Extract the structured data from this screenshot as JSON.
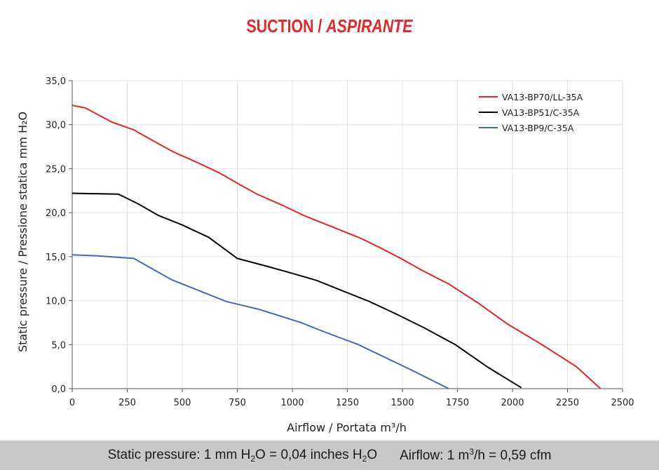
{
  "header": {
    "title_main": "SUCTION /",
    "title_italic": "ASPIRANTE",
    "title_color": "#e3262b"
  },
  "chart_data": {
    "type": "line",
    "xlabel": "Airflow / Portata m³/h",
    "ylabel": "Static pressure / Pressione statica mm H₂O",
    "xlim": [
      0,
      2500
    ],
    "ylim": [
      0,
      35
    ],
    "x_ticks": [
      "0",
      "250",
      "500",
      "750",
      "1000",
      "1250",
      "1500",
      "1750",
      "2000",
      "2250",
      "2500"
    ],
    "y_ticks": [
      "0,0",
      "5,0",
      "10,0",
      "15,0",
      "20,0",
      "25,0",
      "30,0",
      "35,0"
    ],
    "grid": true,
    "legend_position": "top-right",
    "series": [
      {
        "name": "VA13-BP70/LL-35A",
        "color": "#e3262b",
        "points": [
          [
            0,
            32.2
          ],
          [
            60,
            31.9
          ],
          [
            180,
            30.3
          ],
          [
            280,
            29.4
          ],
          [
            380,
            28.0
          ],
          [
            460,
            26.9
          ],
          [
            560,
            25.8
          ],
          [
            670,
            24.5
          ],
          [
            760,
            23.2
          ],
          [
            840,
            22.1
          ],
          [
            950,
            20.9
          ],
          [
            1050,
            19.7
          ],
          [
            1180,
            18.4
          ],
          [
            1310,
            17.1
          ],
          [
            1400,
            16.0
          ],
          [
            1500,
            14.7
          ],
          [
            1600,
            13.3
          ],
          [
            1710,
            11.9
          ],
          [
            1840,
            9.8
          ],
          [
            1980,
            7.3
          ],
          [
            2140,
            4.9
          ],
          [
            2290,
            2.5
          ],
          [
            2400,
            0.0
          ]
        ]
      },
      {
        "name": "VA13-BP51/C-35A",
        "color": "#000000",
        "points": [
          [
            0,
            22.2
          ],
          [
            210,
            22.1
          ],
          [
            300,
            21.0
          ],
          [
            390,
            19.7
          ],
          [
            500,
            18.6
          ],
          [
            620,
            17.2
          ],
          [
            750,
            14.8
          ],
          [
            900,
            13.8
          ],
          [
            1000,
            13.1
          ],
          [
            1110,
            12.3
          ],
          [
            1230,
            11.1
          ],
          [
            1350,
            9.9
          ],
          [
            1470,
            8.5
          ],
          [
            1600,
            6.9
          ],
          [
            1740,
            5.0
          ],
          [
            1890,
            2.4
          ],
          [
            2040,
            0.1
          ]
        ]
      },
      {
        "name": "VA13-BP9/C-35A",
        "color": "#4a66b8",
        "points": [
          [
            0,
            15.2
          ],
          [
            110,
            15.1
          ],
          [
            280,
            14.8
          ],
          [
            450,
            12.4
          ],
          [
            560,
            11.3
          ],
          [
            700,
            9.9
          ],
          [
            850,
            9.0
          ],
          [
            1040,
            7.5
          ],
          [
            1140,
            6.5
          ],
          [
            1300,
            5.0
          ],
          [
            1400,
            3.8
          ],
          [
            1550,
            2.0
          ],
          [
            1710,
            0.0
          ]
        ]
      }
    ]
  },
  "footer": {
    "sp_label": "Static pressure: 1 mm H",
    "sp_sub": "2",
    "sp_mid": "O = 0,04 inches H",
    "sp_sub2": "2",
    "sp_end": "O",
    "af_label": "Airflow: 1 m",
    "af_sup": "3",
    "af_end": "/h = 0,59 cfm"
  }
}
